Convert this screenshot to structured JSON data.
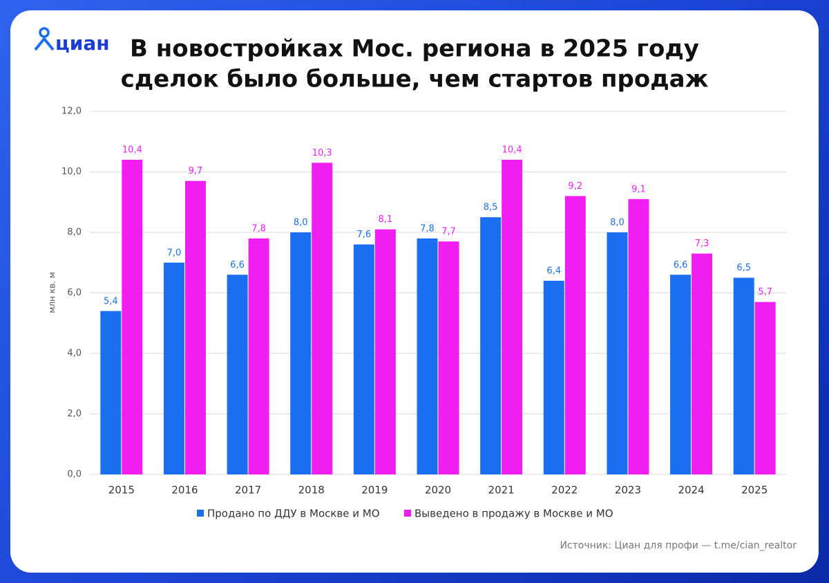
{
  "logo": "циан",
  "chart_data": {
    "type": "bar",
    "title": [
      "В новостройках Мос. региона в 2025 году",
      "сделок было больше, чем стартов продаж"
    ],
    "y_label": "млн кв. м",
    "categories": [
      "2015",
      "2016",
      "2017",
      "2018",
      "2019",
      "2020",
      "2021",
      "2022",
      "2023",
      "2024",
      "2025"
    ],
    "series": [
      {
        "name": "Продано по ДДУ в Москве и МО",
        "color": "#1a6ef0",
        "values": [
          5.4,
          7.0,
          6.6,
          8.0,
          7.6,
          7.8,
          8.5,
          6.4,
          8.0,
          6.6,
          6.5
        ],
        "value_labels": [
          "5,4",
          "7,0",
          "6,6",
          "8,0",
          "7,6",
          "7,8",
          "8,5",
          "6,4",
          "8,0",
          "6,6",
          "6,5"
        ]
      },
      {
        "name": "Выведено в продажу в Москве и МО",
        "color": "#f01ef0",
        "values": [
          10.4,
          9.7,
          7.8,
          10.3,
          8.1,
          7.7,
          10.4,
          9.2,
          9.1,
          7.3,
          5.7
        ],
        "value_labels": [
          "10,4",
          "9,7",
          "7,8",
          "10,3",
          "8,1",
          "7,7",
          "10,4",
          "9,2",
          "9,1",
          "7,3",
          "5,7"
        ]
      }
    ],
    "ylim": [
      0,
      12
    ],
    "yticks": [
      {
        "value": 0,
        "label": "0,0"
      },
      {
        "value": 2,
        "label": "2,0"
      },
      {
        "value": 4,
        "label": "4,0"
      },
      {
        "value": 6,
        "label": "6,0"
      },
      {
        "value": 8,
        "label": "8,0"
      },
      {
        "value": 10,
        "label": "10,0"
      },
      {
        "value": 12,
        "label": "12,0"
      }
    ],
    "grid": true,
    "source": "Источник: Циан для профи — t.me/cian_realtor"
  }
}
